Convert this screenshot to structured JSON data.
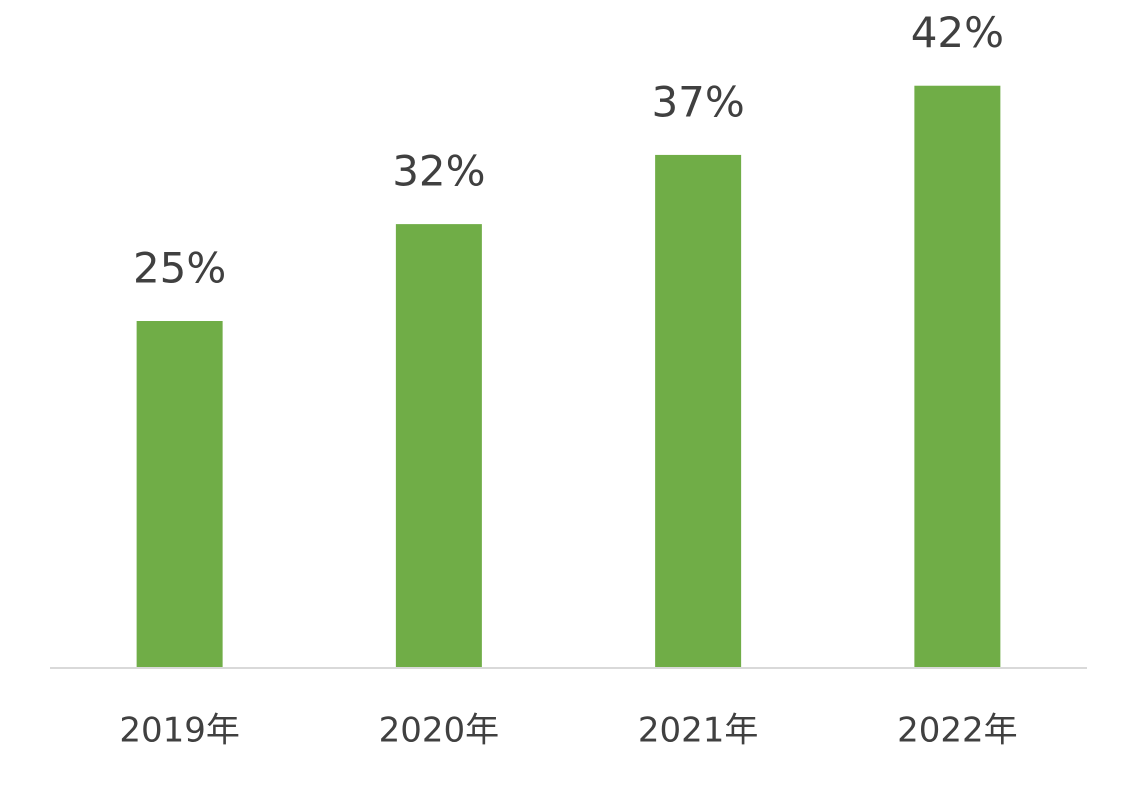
{
  "chart_data": {
    "type": "bar",
    "categories": [
      "2019年",
      "2020年",
      "2021年",
      "2022年"
    ],
    "values": [
      25,
      32,
      37,
      42
    ],
    "value_labels": [
      "25%",
      "32%",
      "37%",
      "42%"
    ],
    "color": "#70ad47"
  }
}
